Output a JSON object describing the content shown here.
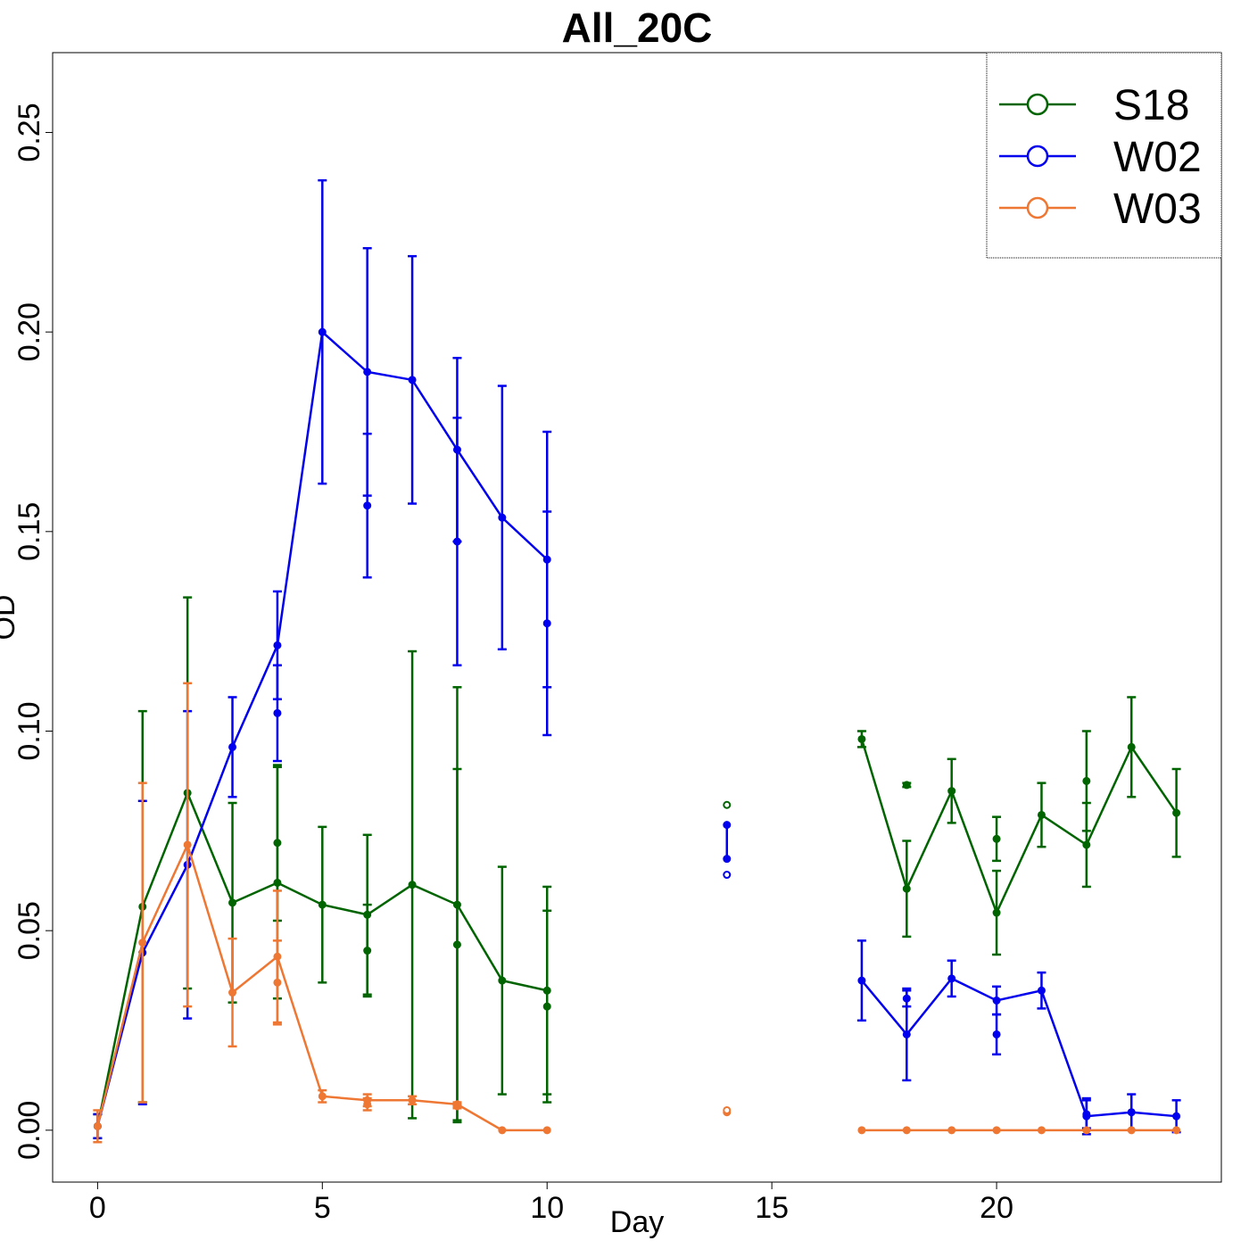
{
  "chart_data": {
    "type": "line",
    "title": "All_20C",
    "xlabel": "Day",
    "ylabel": "OD",
    "xlim": [
      -1,
      25
    ],
    "ylim": [
      -0.013,
      0.27
    ],
    "x_ticks": [
      0,
      5,
      10,
      15,
      20
    ],
    "y_ticks": [
      0.0,
      0.05,
      0.1,
      0.15,
      0.2,
      0.25
    ],
    "x_tick_labels": [
      "0",
      "5",
      "10",
      "15",
      "20"
    ],
    "y_tick_labels": [
      "0.00",
      "0.05",
      "0.10",
      "0.15",
      "0.20",
      "0.25"
    ],
    "legend_position": "top-right",
    "series": [
      {
        "name": "S18",
        "color": "#006400",
        "lines": [
          [
            {
              "x": 0,
              "y": 0.001,
              "err": 0.003
            },
            {
              "x": 1,
              "y": 0.056,
              "err": 0.049
            },
            {
              "x": 2,
              "y": 0.0845,
              "err": 0.049
            },
            {
              "x": 3,
              "y": 0.057,
              "err": 0.025
            },
            {
              "x": 4,
              "y": 0.062,
              "err": 0.029
            },
            {
              "x": 5,
              "y": 0.0565,
              "err": 0.0195
            },
            {
              "x": 6,
              "y": 0.054,
              "err": 0.02
            },
            {
              "x": 7,
              "y": 0.0615,
              "err": 0.0585
            },
            {
              "x": 8,
              "y": 0.0565,
              "err": 0.0545
            },
            {
              "x": 9,
              "y": 0.0375,
              "err": 0.0285
            },
            {
              "x": 10,
              "y": 0.035,
              "err": 0.026
            }
          ],
          [
            {
              "x": 17,
              "y": 0.098,
              "err": 0.002
            },
            {
              "x": 18,
              "y": 0.0605,
              "err": 0.012
            },
            {
              "x": 19,
              "y": 0.085,
              "err": 0.008
            },
            {
              "x": 20,
              "y": 0.0545,
              "err": 0.0105
            },
            {
              "x": 21,
              "y": 0.079,
              "err": 0.008
            },
            {
              "x": 22,
              "y": 0.0715,
              "err": 0.0105
            },
            {
              "x": 23,
              "y": 0.096,
              "err": 0.0125
            },
            {
              "x": 24,
              "y": 0.0795,
              "err": 0.011
            }
          ]
        ],
        "alt_points": [
          {
            "x": 4,
            "y": 0.072,
            "err": 0.0195
          },
          {
            "x": 6,
            "y": 0.045,
            "err": 0.0115
          },
          {
            "x": 8,
            "y": 0.0465,
            "err": 0.044
          },
          {
            "x": 10,
            "y": 0.031,
            "err": 0.024
          },
          {
            "x": 18,
            "y": 0.0865,
            "err": 0.0005
          },
          {
            "x": 20,
            "y": 0.073,
            "err": 0.0055
          },
          {
            "x": 22,
            "y": 0.0875,
            "err": 0.0125
          }
        ],
        "hollow_points": [
          {
            "x": 14,
            "y": 0.0815
          }
        ]
      },
      {
        "name": "W02",
        "color": "#0000ee",
        "lines": [
          [
            {
              "x": 0,
              "y": 0.001,
              "err": 0.003
            },
            {
              "x": 1,
              "y": 0.0445,
              "err": 0.038
            },
            {
              "x": 2,
              "y": 0.0665,
              "err": 0.0385
            },
            {
              "x": 3,
              "y": 0.096,
              "err": 0.0125
            },
            {
              "x": 4,
              "y": 0.1215,
              "err": 0.0135
            },
            {
              "x": 5,
              "y": 0.2,
              "err": 0.038
            },
            {
              "x": 6,
              "y": 0.19,
              "err": 0.031
            },
            {
              "x": 7,
              "y": 0.188,
              "err": 0.031
            },
            {
              "x": 8,
              "y": 0.1705,
              "err": 0.023
            },
            {
              "x": 9,
              "y": 0.1535,
              "err": 0.033
            },
            {
              "x": 10,
              "y": 0.143,
              "err": 0.032
            }
          ],
          [
            {
              "x": 17,
              "y": 0.0375,
              "err": 0.01
            },
            {
              "x": 18,
              "y": 0.024,
              "err": 0.0115
            },
            {
              "x": 19,
              "y": 0.038,
              "err": 0.0045
            },
            {
              "x": 20,
              "y": 0.0325,
              "err": 0.0035
            },
            {
              "x": 21,
              "y": 0.035,
              "err": 0.0045
            },
            {
              "x": 22,
              "y": 0.0035,
              "err": 0.0045
            },
            {
              "x": 23,
              "y": 0.0045,
              "err": 0.0045
            },
            {
              "x": 24,
              "y": 0.0035,
              "err": 0.004
            }
          ]
        ],
        "alt_points": [
          {
            "x": 4,
            "y": 0.1045,
            "err": 0.012
          },
          {
            "x": 6,
            "y": 0.1565,
            "err": 0.018
          },
          {
            "x": 8,
            "y": 0.1475,
            "err": 0.031
          },
          {
            "x": 10,
            "y": 0.127,
            "err": 0.028
          },
          {
            "x": 18,
            "y": 0.033,
            "err": 0.002
          },
          {
            "x": 20,
            "y": 0.024,
            "err": 0.005
          },
          {
            "x": 22,
            "y": 0.004,
            "err": 0.0035
          }
        ],
        "hollow_points": [
          {
            "x": 14,
            "y": 0.064
          }
        ],
        "solid_extra": [
          {
            "x": 14,
            "y": 0.0765
          },
          {
            "x": 14,
            "y": 0.068
          }
        ]
      },
      {
        "name": "W03",
        "color": "#ee7733",
        "lines": [
          [
            {
              "x": 0,
              "y": 0.001,
              "err": 0.004
            },
            {
              "x": 1,
              "y": 0.047,
              "err": 0.04
            },
            {
              "x": 2,
              "y": 0.0715,
              "err": 0.0405
            },
            {
              "x": 3,
              "y": 0.0345,
              "err": 0.0135
            },
            {
              "x": 4,
              "y": 0.0435,
              "err": 0.0165
            },
            {
              "x": 5,
              "y": 0.0085,
              "err": 0.0015
            },
            {
              "x": 6,
              "y": 0.0075,
              "err": 0.0015
            },
            {
              "x": 7,
              "y": 0.0075,
              "err": 0.001
            },
            {
              "x": 8,
              "y": 0.0065,
              "err": 0.0005
            },
            {
              "x": 9,
              "y": 0.0,
              "err": 0
            },
            {
              "x": 10,
              "y": 0.0,
              "err": 0
            }
          ],
          [
            {
              "x": 17,
              "y": 0.0,
              "err": 0
            },
            {
              "x": 18,
              "y": 0.0,
              "err": 0
            },
            {
              "x": 19,
              "y": 0.0,
              "err": 0
            },
            {
              "x": 20,
              "y": 0.0,
              "err": 0
            },
            {
              "x": 21,
              "y": 0.0,
              "err": 0
            },
            {
              "x": 22,
              "y": 0.0,
              "err": 0
            },
            {
              "x": 23,
              "y": 0.0,
              "err": 0
            },
            {
              "x": 24,
              "y": 0.0,
              "err": 0
            }
          ]
        ],
        "alt_points": [
          {
            "x": 4,
            "y": 0.037,
            "err": 0.0105
          },
          {
            "x": 6,
            "y": 0.0065,
            "err": 0.0015
          },
          {
            "x": 8,
            "y": 0.006,
            "err": 0.0005
          }
        ],
        "hollow_points": [
          {
            "x": 14,
            "y": 0.005
          }
        ],
        "solid_extra": [
          {
            "x": 14,
            "y": 0.0045
          }
        ]
      }
    ]
  }
}
